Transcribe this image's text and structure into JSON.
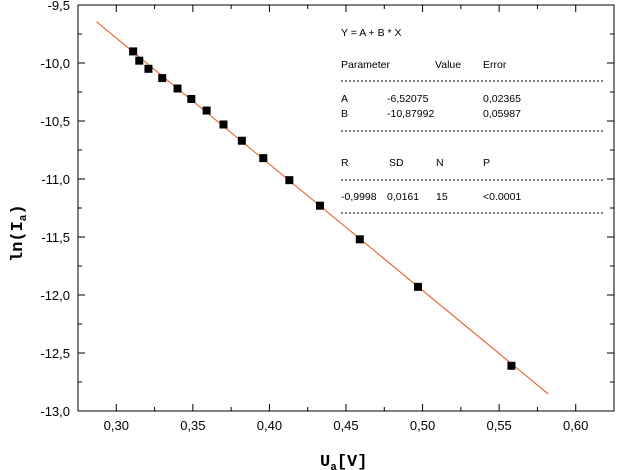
{
  "chart_data": {
    "type": "scatter",
    "xlabel": "U",
    "xlabel_sub": "a",
    "xlabel_unit": "[V]",
    "ylabel": "ln(I",
    "ylabel_sub": "a",
    "ylabel_close": ")",
    "xlim": [
      0.275,
      0.625
    ],
    "ylim": [
      -13.0,
      -9.5
    ],
    "x_ticks": [
      0.3,
      0.35,
      0.4,
      0.45,
      0.5,
      0.55,
      0.6
    ],
    "x_tick_labels": [
      "0,30",
      "0,35",
      "0,40",
      "0,45",
      "0,50",
      "0,55",
      "0,60"
    ],
    "y_ticks": [
      -9.5,
      -10.0,
      -10.5,
      -11.0,
      -11.5,
      -12.0,
      -12.5,
      -13.0
    ],
    "y_tick_labels": [
      "-9,5",
      "-10,0",
      "-10,5",
      "-11,0",
      "-11,5",
      "-12,0",
      "-12,5",
      "-13,0"
    ],
    "grid": false,
    "series": [
      {
        "x": [
          0.311,
          0.315,
          0.321,
          0.33,
          0.34,
          0.349,
          0.359,
          0.37,
          0.382,
          0.396,
          0.413,
          0.433,
          0.459,
          0.497,
          0.558
        ],
        "y": [
          -9.9,
          -9.98,
          -10.05,
          -10.13,
          -10.22,
          -10.31,
          -10.41,
          -10.53,
          -10.67,
          -10.82,
          -11.01,
          -11.23,
          -11.52,
          -11.93,
          -12.61
        ],
        "marker": "square",
        "color": "#000000"
      }
    ],
    "fit_line": {
      "intercept": -6.52075,
      "slope": -10.87992,
      "x_range": [
        0.287,
        0.582
      ],
      "color": "#e8541e"
    }
  },
  "fit_box": {
    "equation": "Y = A + B * X",
    "header": [
      "Parameter",
      "Value",
      "Error"
    ],
    "params": [
      [
        "A",
        "-6,52075",
        "0,02365"
      ],
      [
        "B",
        "-10,87992",
        "0,05987"
      ]
    ],
    "stats_header": [
      "R",
      "SD",
      "N",
      "P"
    ],
    "stats": [
      "-0,9998",
      "0,0161",
      "15",
      "<0.0001"
    ]
  }
}
